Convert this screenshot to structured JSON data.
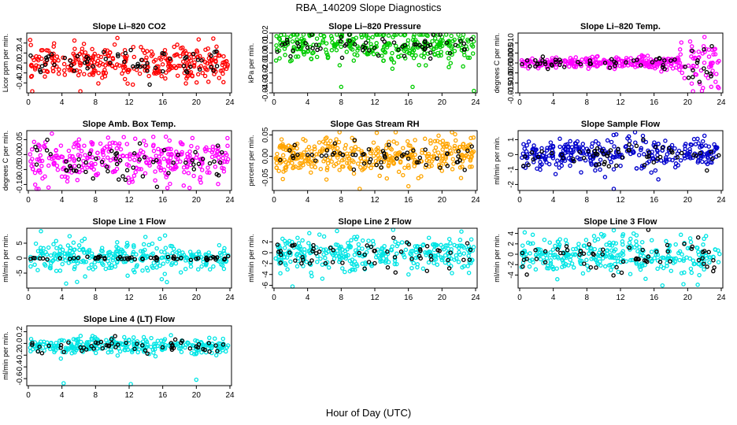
{
  "page": {
    "title": "RBA_140209  Slope Diagnostics",
    "xlabel": "Hour of Day (UTC)"
  },
  "chart_data": [
    {
      "type": "scatter",
      "title": "Slope Li–820 CO2",
      "ylabel": "Licor ppm per min.",
      "xlim": [
        0,
        24
      ],
      "xticks": [
        0,
        4,
        8,
        12,
        16,
        20,
        24
      ],
      "ylim": [
        -0.6,
        0.6
      ],
      "yticks": [
        -0.4,
        -0.2,
        0.0,
        0.2,
        0.4
      ],
      "ytick_labels": [
        "-0.4",
        "-0.2",
        "0.0",
        "0.2",
        "0.4"
      ],
      "series": [
        {
          "color": "#ff0000",
          "center": 0.0,
          "spread": 0.17,
          "n": 320,
          "outliers": [
            [
              6.2,
              -0.58
            ],
            [
              10.6,
              0.5
            ]
          ]
        },
        {
          "color": "#000000",
          "center": 0.0,
          "spread": 0.15,
          "n": 60
        }
      ]
    },
    {
      "type": "scatter",
      "title": "Slope Li–820 Pressure",
      "ylabel": "kPa per min.",
      "xlim": [
        0,
        24
      ],
      "xticks": [
        0,
        4,
        8,
        12,
        16,
        20,
        24
      ],
      "ylim": [
        -0.04,
        0.02
      ],
      "yticks": [
        -0.04,
        -0.03,
        -0.02,
        -0.01,
        0.0,
        0.01,
        0.02
      ],
      "ytick_labels": [
        "-0.04",
        "-0.03",
        "-0.02",
        "-0.01",
        "0.00",
        "0.01",
        "0.02"
      ],
      "series": [
        {
          "color": "#00cc00",
          "center": 0.007,
          "spread": 0.008,
          "n": 320,
          "outliers": [
            [
              8.0,
              -0.034
            ],
            [
              16.5,
              -0.034
            ],
            [
              23.8,
              -0.038
            ]
          ]
        },
        {
          "color": "#000000",
          "center": 0.007,
          "spread": 0.006,
          "n": 60
        }
      ]
    },
    {
      "type": "scatter",
      "title": "Slope Li–820 Temp.",
      "ylabel": "degrees C per min.",
      "xlim": [
        0,
        24
      ],
      "xticks": [
        0,
        4,
        8,
        12,
        16,
        20,
        24
      ],
      "ylim": [
        -0.015,
        0.015
      ],
      "yticks": [
        -0.015,
        -0.01,
        -0.005,
        0.0,
        0.005,
        0.01
      ],
      "ytick_labels": [
        "-0.015",
        "-0.010",
        "-0.005",
        "0.000",
        "0.005",
        "0.010"
      ],
      "series": [
        {
          "color": "#ff00ff",
          "center": 0.0,
          "spread": 0.0015,
          "n": 320,
          "outliers": [
            [
              21.7,
              -0.014
            ],
            [
              22.0,
              0.013
            ],
            [
              23.6,
              -0.012
            ]
          ]
        },
        {
          "color": "#000000",
          "center": 0.0,
          "spread": 0.0015,
          "n": 60
        }
      ]
    },
    {
      "type": "scatter",
      "title": "Slope Amb. Box Temp.",
      "ylabel": "degrees C per min.",
      "xlim": [
        0,
        24
      ],
      "xticks": [
        0,
        4,
        8,
        12,
        16,
        20,
        24
      ],
      "ylim": [
        -0.12,
        0.08
      ],
      "yticks": [
        -0.1,
        -0.05,
        0.0,
        0.05
      ],
      "ytick_labels": [
        "-0.10",
        "-0.05",
        "0.00",
        "0.05"
      ],
      "series": [
        {
          "color": "#ff00ff",
          "center": -0.02,
          "spread": 0.035,
          "n": 320,
          "outliers": [
            [
              2.4,
              -0.11
            ],
            [
              2.8,
              0.07
            ]
          ]
        },
        {
          "color": "#000000",
          "center": -0.02,
          "spread": 0.03,
          "n": 60
        }
      ]
    },
    {
      "type": "scatter",
      "title": "Slope Gas Stream RH",
      "ylabel": "percent per min.",
      "xlim": [
        0,
        24
      ],
      "xticks": [
        0,
        4,
        8,
        12,
        16,
        20,
        24
      ],
      "ylim": [
        -0.08,
        0.06
      ],
      "yticks": [
        -0.05,
        0.0,
        0.05
      ],
      "ytick_labels": [
        "-0.05",
        "0.00",
        "0.05"
      ],
      "series": [
        {
          "color": "#ffa500",
          "center": 0.0,
          "spread": 0.022,
          "n": 380,
          "outliers": [
            [
              7.8,
              0.06
            ],
            [
              10.2,
              -0.078
            ],
            [
              16.0,
              -0.07
            ]
          ]
        },
        {
          "color": "#000000",
          "center": 0.0,
          "spread": 0.018,
          "n": 60
        }
      ]
    },
    {
      "type": "scatter",
      "title": "Slope Sample Flow",
      "ylabel": "ml/min per min.",
      "xlim": [
        0,
        24
      ],
      "xticks": [
        0,
        4,
        8,
        12,
        16,
        20,
        24
      ],
      "ylim": [
        -2.4,
        1.6
      ],
      "yticks": [
        -2,
        -1,
        0,
        1
      ],
      "ytick_labels": [
        "-2",
        "-1",
        "0",
        "1"
      ],
      "series": [
        {
          "color": "#0000cc",
          "center": 0.0,
          "spread": 0.5,
          "n": 320,
          "outliers": [
            [
              11.2,
              -2.3
            ],
            [
              11.5,
              1.35
            ]
          ]
        },
        {
          "color": "#000000",
          "center": 0.0,
          "spread": 0.4,
          "n": 60
        }
      ]
    },
    {
      "type": "scatter",
      "title": "Slope Line 1 Flow",
      "ylabel": "ml/min per min.",
      "xlim": [
        0,
        24
      ],
      "xticks": [
        0,
        4,
        8,
        12,
        16,
        20,
        24
      ],
      "ylim": [
        -10,
        10
      ],
      "yticks": [
        -5,
        0,
        5
      ],
      "ytick_labels": [
        "-5",
        "0",
        "5"
      ],
      "series": [
        {
          "color": "#00e5e5",
          "center": 0.5,
          "spread": 2.5,
          "n": 300,
          "outliers": [
            [
              1.5,
              9.0
            ],
            [
              4.5,
              -8.5
            ],
            [
              16.5,
              -8.0
            ]
          ]
        },
        {
          "color": "#000000",
          "center": 0.0,
          "spread": 0.3,
          "n": 60
        }
      ]
    },
    {
      "type": "scatter",
      "title": "Slope Line 2 Flow",
      "ylabel": "ml/min per min.",
      "xlim": [
        0,
        24
      ],
      "xticks": [
        0,
        4,
        8,
        12,
        16,
        20,
        24
      ],
      "ylim": [
        -6.5,
        4.5
      ],
      "yticks": [
        -6,
        -4,
        -2,
        0,
        2
      ],
      "ytick_labels": [
        "-6",
        "-4",
        "-2",
        "0",
        "2"
      ],
      "series": [
        {
          "color": "#00e5e5",
          "center": -0.3,
          "spread": 1.6,
          "n": 320,
          "outliers": [
            [
              2.2,
              -6.3
            ],
            [
              7.5,
              4.0
            ]
          ]
        },
        {
          "color": "#000000",
          "center": -0.5,
          "spread": 1.3,
          "n": 60
        }
      ]
    },
    {
      "type": "scatter",
      "title": "Slope Line 3 Flow",
      "ylabel": "ml/min per min.",
      "xlim": [
        0,
        24
      ],
      "xticks": [
        0,
        4,
        8,
        12,
        16,
        20,
        24
      ],
      "ylim": [
        -6.5,
        5.0
      ],
      "yticks": [
        -4,
        -2,
        0,
        2,
        4
      ],
      "ytick_labels": [
        "-4",
        "-2",
        "0",
        "2",
        "4"
      ],
      "series": [
        {
          "color": "#00e5e5",
          "center": -0.3,
          "spread": 1.8,
          "n": 320,
          "outliers": [
            [
              11.2,
              4.6
            ],
            [
              0.6,
              4.2
            ],
            [
              17.0,
              -6.0
            ]
          ]
        },
        {
          "color": "#000000",
          "center": -0.5,
          "spread": 1.5,
          "n": 60
        }
      ]
    },
    {
      "type": "scatter",
      "title": "Slope Line 4 (LT) Flow",
      "ylabel": "ml/min per min.",
      "xlim": [
        0,
        24
      ],
      "xticks": [
        0,
        4,
        8,
        12,
        16,
        20,
        24
      ],
      "ylim": [
        -0.72,
        0.3
      ],
      "yticks": [
        -0.6,
        -0.4,
        -0.2,
        0.0,
        0.2
      ],
      "ytick_labels": [
        "-0.6",
        "-0.4",
        "-0.2",
        "0.0",
        "0.2"
      ],
      "series": [
        {
          "color": "#00e5e5",
          "center": -0.04,
          "spread": 0.07,
          "n": 300,
          "outliers": [
            [
              4.2,
              -0.68
            ],
            [
              12.2,
              -0.7
            ],
            [
              20.0,
              -0.62
            ]
          ]
        },
        {
          "color": "#000000",
          "center": -0.05,
          "spread": 0.07,
          "n": 55
        }
      ]
    }
  ]
}
